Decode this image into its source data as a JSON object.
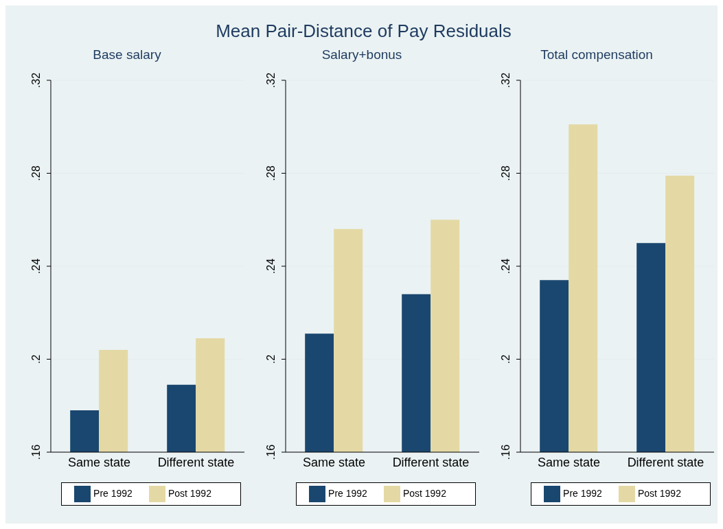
{
  "chart_data": [
    {
      "type": "other",
      "title": "Mean Pair-Distance of Pay Residuals"
    },
    {
      "type": "bar",
      "title": "Base salary",
      "categories": [
        "Same state",
        "Different state"
      ],
      "series": [
        {
          "name": "Pre 1992",
          "color": "#1a476f",
          "values": [
            0.178,
            0.189
          ]
        },
        {
          "name": "Post 1992",
          "color": "#e4d9a5",
          "values": [
            0.204,
            0.209
          ]
        }
      ],
      "ylim": [
        0.16,
        0.32
      ],
      "yticks": [
        {
          "value": 0.16,
          "label": ".16"
        },
        {
          "value": 0.2,
          "label": ".2"
        },
        {
          "value": 0.24,
          "label": ".24"
        },
        {
          "value": 0.28,
          "label": ".28"
        },
        {
          "value": 0.32,
          "label": ".32"
        }
      ],
      "grid": "y",
      "legend": "bottom"
    },
    {
      "type": "bar",
      "title": "Salary+bonus",
      "categories": [
        "Same state",
        "Different state"
      ],
      "series": [
        {
          "name": "Pre 1992",
          "color": "#1a476f",
          "values": [
            0.211,
            0.228
          ]
        },
        {
          "name": "Post 1992",
          "color": "#e4d9a5",
          "values": [
            0.256,
            0.26
          ]
        }
      ],
      "ylim": [
        0.16,
        0.32
      ],
      "yticks": [
        {
          "value": 0.16,
          "label": ".16"
        },
        {
          "value": 0.2,
          "label": ".2"
        },
        {
          "value": 0.24,
          "label": ".24"
        },
        {
          "value": 0.28,
          "label": ".28"
        },
        {
          "value": 0.32,
          "label": ".32"
        }
      ],
      "grid": "y",
      "legend": "bottom"
    },
    {
      "type": "bar",
      "title": "Total compensation",
      "categories": [
        "Same state",
        "Different state"
      ],
      "series": [
        {
          "name": "Pre 1992",
          "color": "#1a476f",
          "values": [
            0.234,
            0.25
          ]
        },
        {
          "name": "Post 1992",
          "color": "#e4d9a5",
          "values": [
            0.301,
            0.279
          ]
        }
      ],
      "ylim": [
        0.16,
        0.32
      ],
      "yticks": [
        {
          "value": 0.16,
          "label": ".16"
        },
        {
          "value": 0.2,
          "label": ".2"
        },
        {
          "value": 0.24,
          "label": ".24"
        },
        {
          "value": 0.28,
          "label": ".28"
        },
        {
          "value": 0.32,
          "label": ".32"
        }
      ],
      "grid": "y",
      "legend": "bottom"
    }
  ]
}
